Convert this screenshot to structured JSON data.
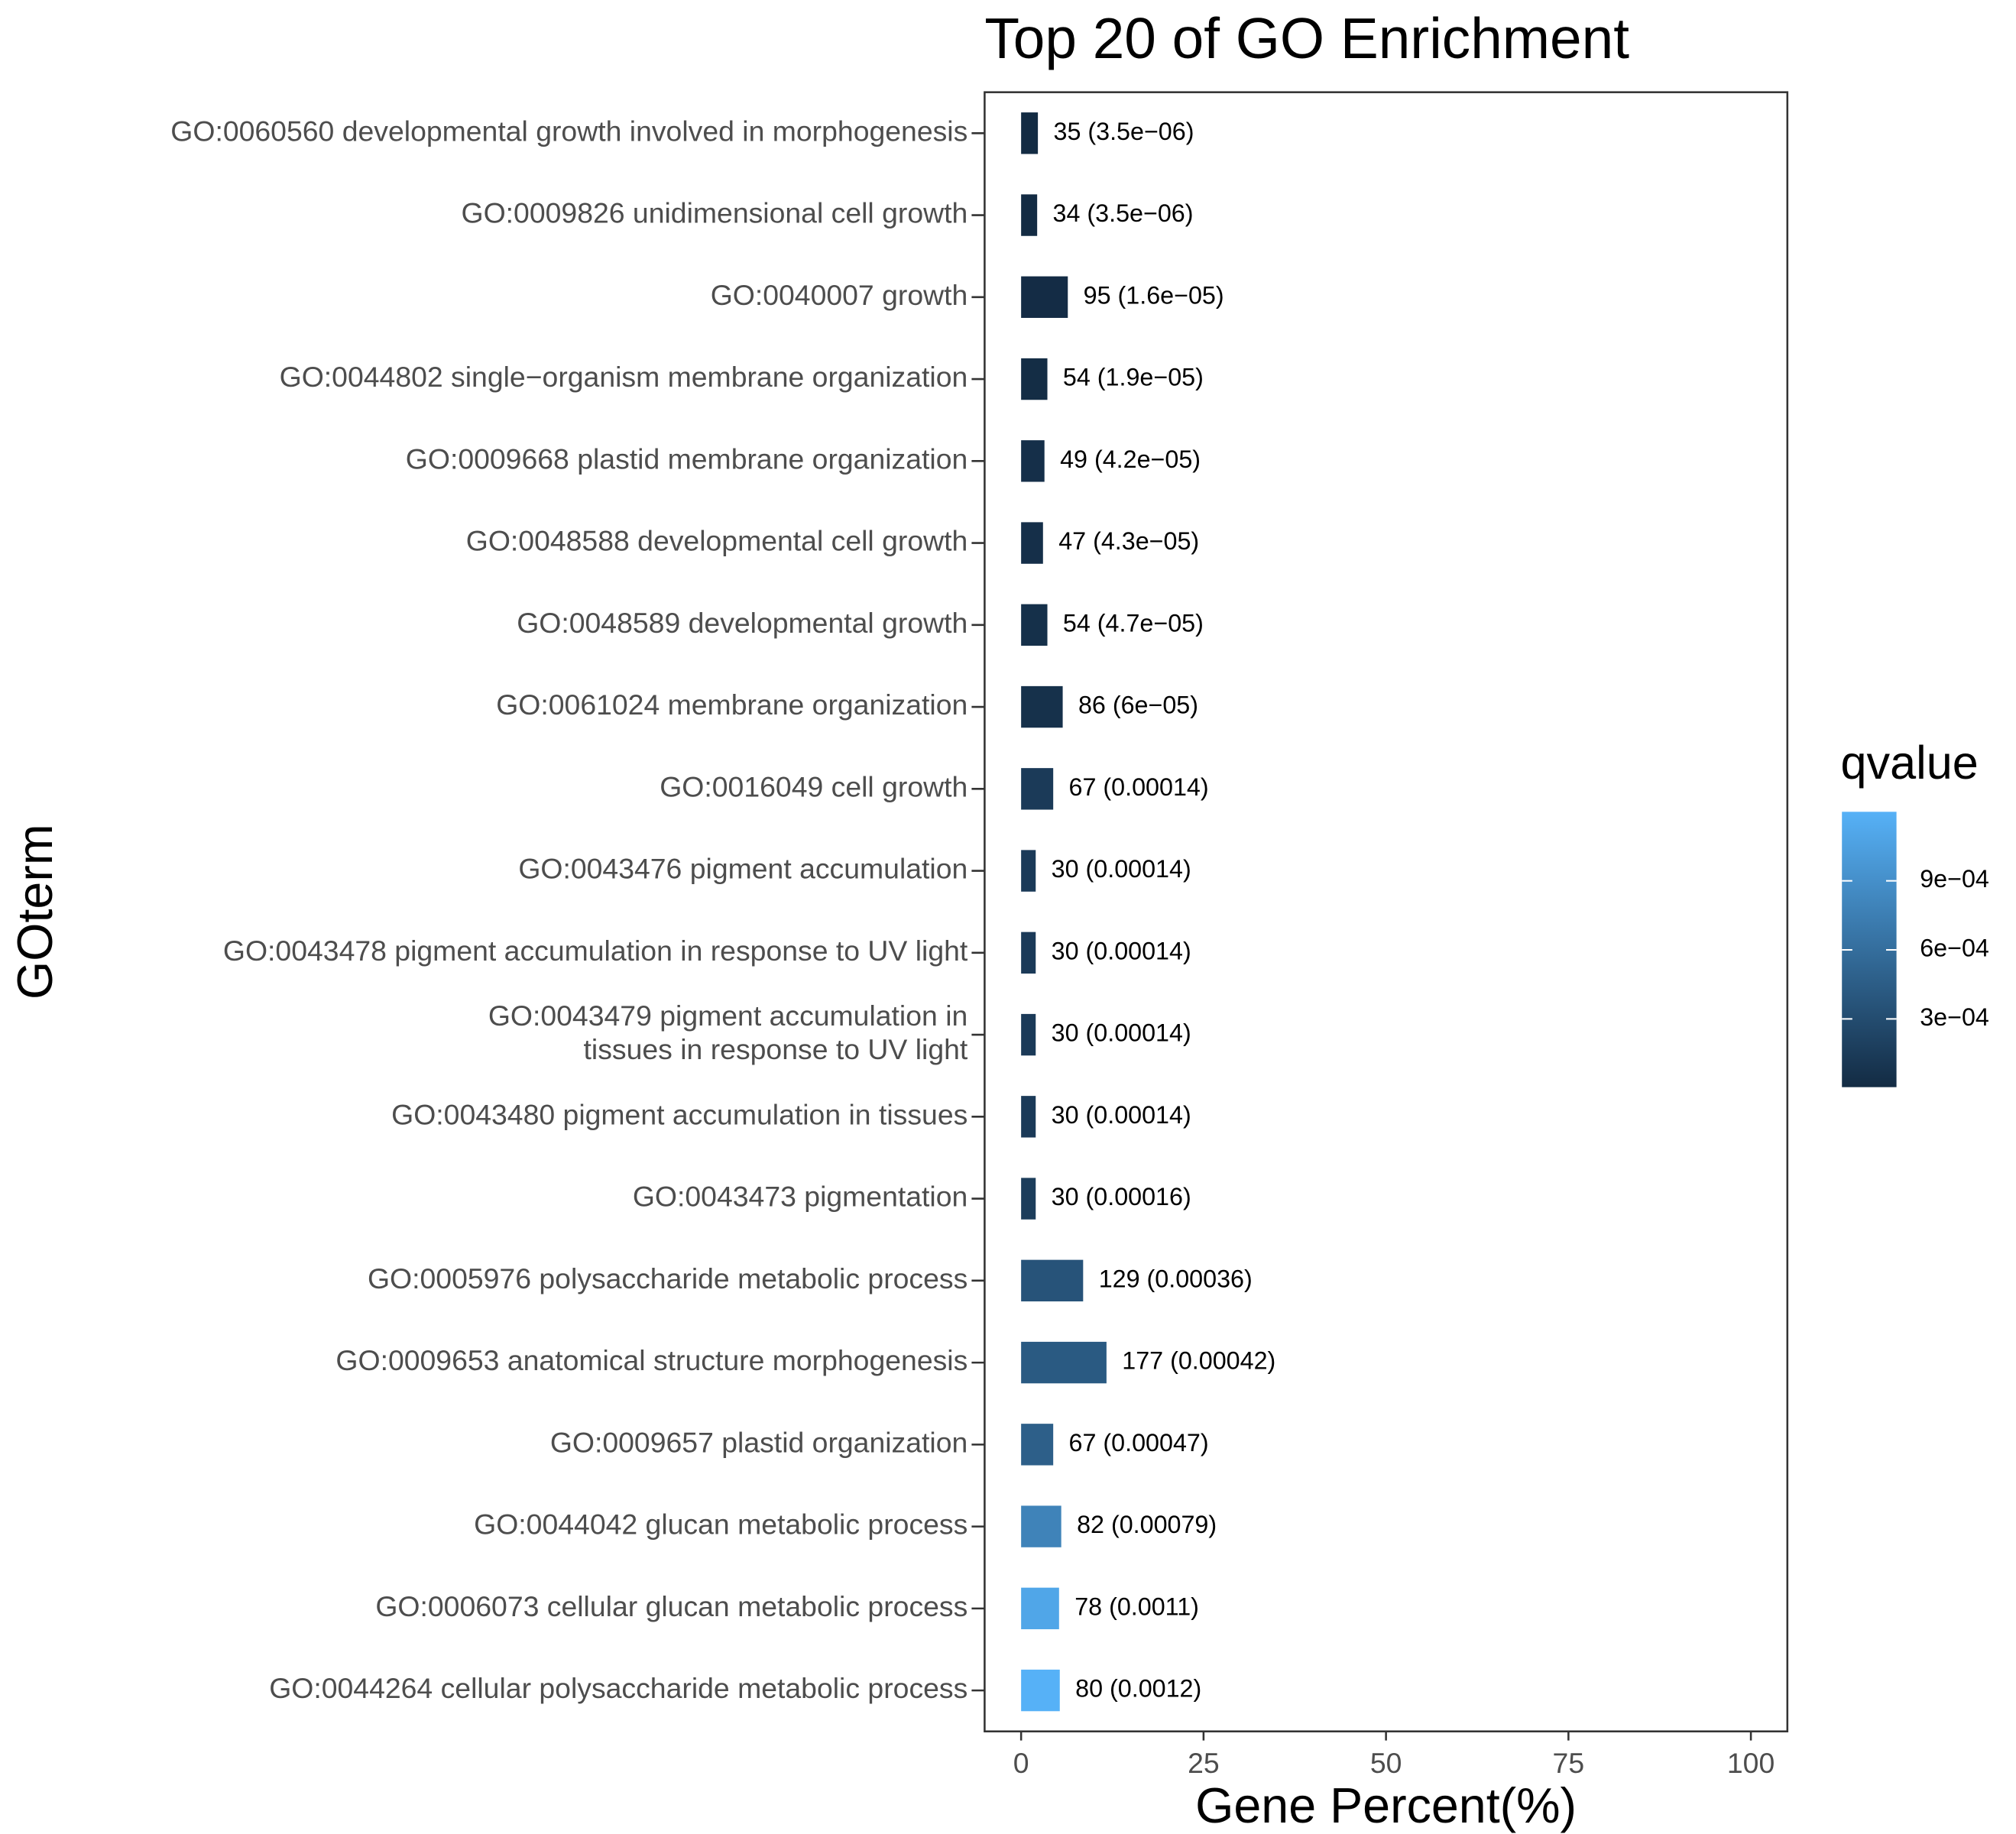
{
  "chart_data": {
    "type": "bar",
    "orientation": "horizontal",
    "title": "Top 20 of GO Enrichment",
    "x_label": "Gene Percent(%)",
    "y_label": "GOterm",
    "categories": [
      "GO:0060560 developmental growth involved in morphogenesis",
      "GO:0009826 unidimensional cell growth",
      "GO:0040007 growth",
      "GO:0044802 single−organism membrane organization",
      "GO:0009668 plastid membrane organization",
      "GO:0048588 developmental cell growth",
      "GO:0048589 developmental growth",
      "GO:0061024 membrane organization",
      "GO:0016049 cell growth",
      "GO:0043476 pigment accumulation",
      "GO:0043478 pigment accumulation in response to UV light",
      "GO:0043479 pigment accumulation in\ntissues in response to UV light",
      "GO:0043480 pigment accumulation in tissues",
      "GO:0043473 pigmentation",
      "GO:0005976 polysaccharide metabolic process",
      "GO:0009653 anatomical structure morphogenesis",
      "GO:0009657 plastid organization",
      "GO:0044042 glucan metabolic process",
      "GO:0006073 cellular glucan metabolic process",
      "GO:0044264 cellular polysaccharide metabolic process"
    ],
    "values": [
      2.3,
      2.2,
      6.4,
      3.6,
      3.2,
      3.0,
      3.6,
      5.7,
      4.4,
      2.0,
      2.0,
      2.0,
      2.0,
      2.0,
      8.5,
      11.7,
      4.4,
      5.5,
      5.2,
      5.3
    ],
    "annotations": [
      "35 (3.5e−06)",
      "34 (3.5e−06)",
      "95 (1.6e−05)",
      "54 (1.9e−05)",
      "49 (4.2e−05)",
      "47 (4.3e−05)",
      "54 (4.7e−05)",
      "86 (6e−05)",
      "67 (0.00014)",
      "30 (0.00014)",
      "30 (0.00014)",
      "30 (0.00014)",
      "30 (0.00014)",
      "30 (0.00016)",
      "129 (0.00036)",
      "177 (0.00042)",
      "67 (0.00047)",
      "82 (0.00079)",
      "78 (0.0011)",
      "80 (0.0012)"
    ],
    "qvalues": [
      3.5e-06,
      3.5e-06,
      1.6e-05,
      1.9e-05,
      4.2e-05,
      4.3e-05,
      4.7e-05,
      6e-05,
      0.00014,
      0.00014,
      0.00014,
      0.00014,
      0.00014,
      0.00016,
      0.00036,
      0.00042,
      0.00047,
      0.00079,
      0.0011,
      0.0012
    ],
    "xlim": [
      -5,
      105
    ],
    "xticks": [
      0,
      25,
      50,
      75,
      100
    ],
    "legend_title": "qvalue",
    "colormap": [
      "#132B43",
      "#56B1F7"
    ],
    "clim": [
      3.5e-06,
      0.0012
    ],
    "cticks": [
      {
        "value": 0.0003,
        "label": "3e−04"
      },
      {
        "value": 0.0006,
        "label": "6e−04"
      },
      {
        "value": 0.0009,
        "label": "9e−04"
      }
    ]
  }
}
